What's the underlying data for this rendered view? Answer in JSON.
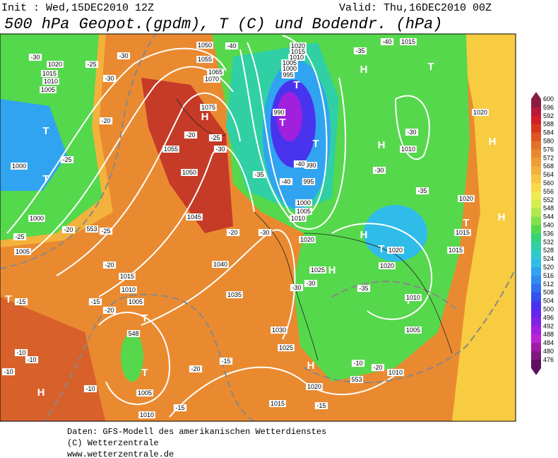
{
  "header": {
    "init": "Init : Wed,15DEC2010 12Z",
    "valid": "Valid: Thu,16DEC2010 00Z",
    "title": "500 hPa Geopot.(gpdm), T (C) und Bodendr. (hPa)"
  },
  "legend": {
    "levels": [
      "600",
      "596",
      "592",
      "588",
      "584",
      "580",
      "576",
      "572",
      "568",
      "564",
      "560",
      "556",
      "552",
      "548",
      "544",
      "540",
      "536",
      "532",
      "528",
      "524",
      "520",
      "516",
      "512",
      "508",
      "504",
      "500",
      "496",
      "492",
      "488",
      "484",
      "480",
      "476"
    ],
    "colors": [
      "#8a1c44",
      "#b8183c",
      "#d21e2a",
      "#d8381e",
      "#de5424",
      "#e4702a",
      "#ea8830",
      "#f09c34",
      "#f4b03a",
      "#f8c642",
      "#fad84a",
      "#f0ea4c",
      "#d4ee4c",
      "#aee84c",
      "#84e04c",
      "#56d84c",
      "#34d27a",
      "#30d0a4",
      "#30cccc",
      "#30bce8",
      "#30a4f0",
      "#308cf0",
      "#3070f0",
      "#3450ee",
      "#4834ee",
      "#6426ec",
      "#8222e6",
      "#a020de",
      "#bc22d4",
      "#a01ca6",
      "#80187e",
      "#5e105e"
    ]
  },
  "map": {
    "markers": [
      "H",
      "H",
      "H",
      "H",
      "H",
      "H",
      "H",
      "H",
      "H",
      "T",
      "T",
      "T",
      "T",
      "T",
      "T",
      "T",
      "T",
      "T",
      "T",
      "T",
      "T"
    ],
    "labels": [
      "1050",
      "1055",
      "1065",
      "1070",
      "1075",
      "1055",
      "1050",
      "1045",
      "1040",
      "1035",
      "1030",
      "1025",
      "1020",
      "1015",
      "1010",
      "1005",
      "1010",
      "1015",
      "1005",
      "1005",
      "1000",
      "1000",
      "1005",
      "1010",
      "1015",
      "1020",
      "1020",
      "1015",
      "1010",
      "1005",
      "1000",
      "995",
      "990",
      "990",
      "995",
      "1000",
      "1005",
      "1010",
      "1020",
      "1025",
      "1020",
      "1020",
      "1010",
      "1005",
      "1010",
      "1015",
      "1020",
      "1020",
      "1015",
      "1015",
      "1010",
      "-30",
      "-25",
      "-30",
      "-30",
      "-20",
      "-25",
      "-20",
      "-25",
      "-25",
      "-20",
      "-15",
      "-15",
      "-20",
      "-10",
      "-10",
      "-10",
      "-10",
      "-15",
      "-20",
      "-15",
      "-15",
      "-20",
      "-10",
      "-30",
      "-30",
      "-35",
      "-30",
      "-35",
      "-30",
      "-40",
      "-35",
      "-40",
      "-40",
      "-40",
      "-35",
      "-30",
      "-20",
      "-30",
      "-25",
      "-20",
      "553",
      "548",
      "553"
    ]
  },
  "footer": {
    "lines": [
      "Daten: GFS-Modell des amerikanischen Wetterdienstes",
      "(C) Wetterzentrale",
      "www.wetterzentrale.de"
    ]
  }
}
